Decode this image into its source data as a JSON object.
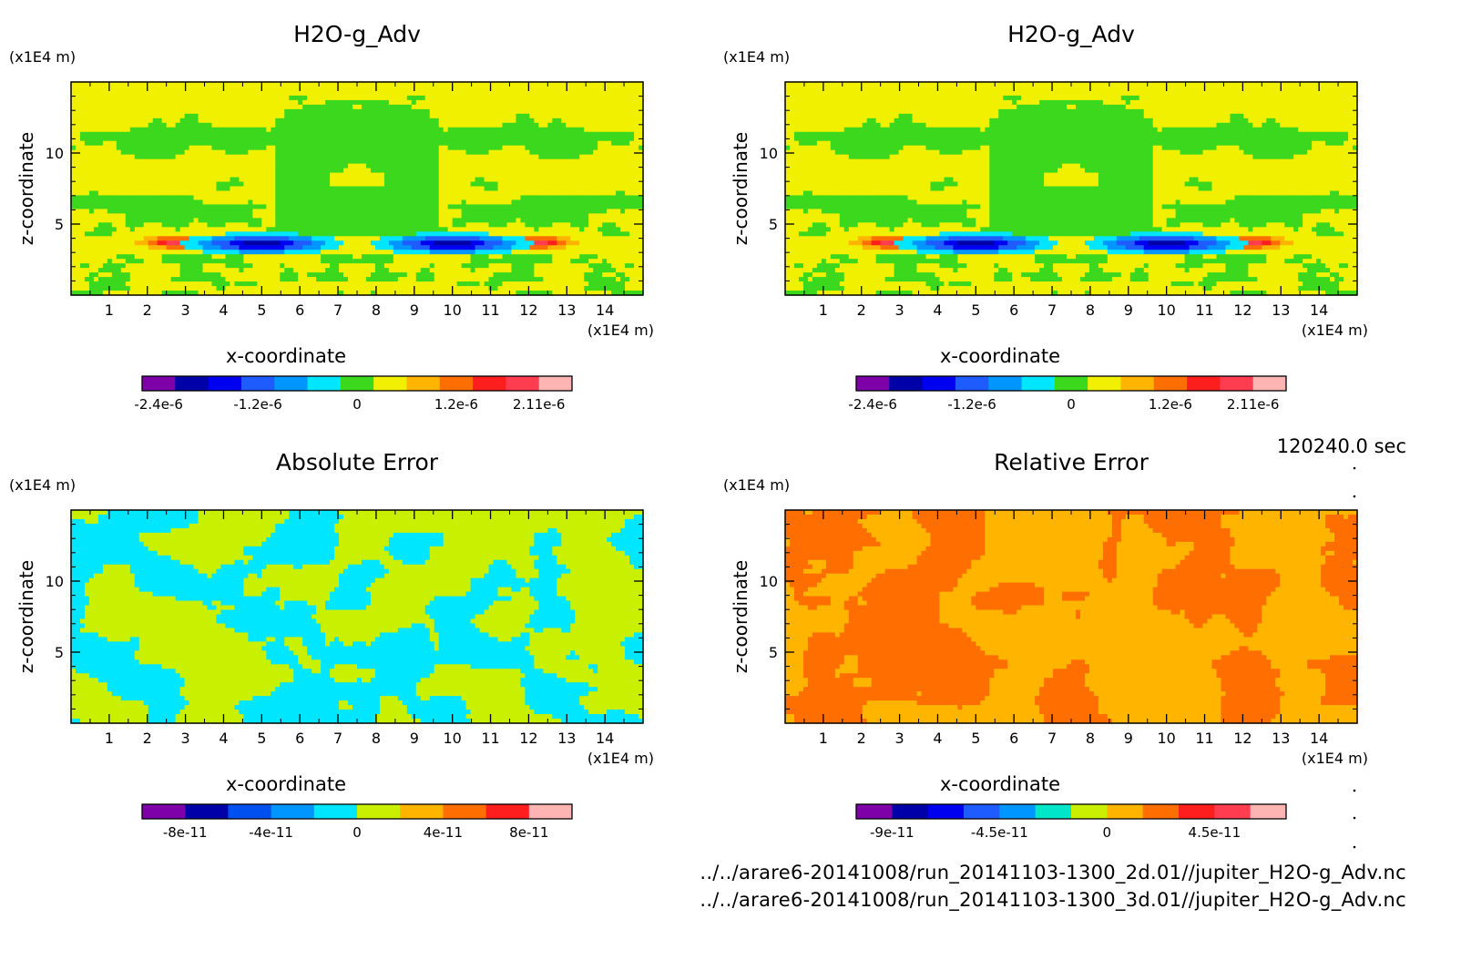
{
  "time_label": "120240.0 sec",
  "footer_lines": [
    "../../arare6-20141008/run_20141103-1300_2d.01//jupiter_H2O-g_Adv.nc",
    "../../arare6-20141008/run_20141103-1300_3d.01//jupiter_H2O-g_Adv.nc"
  ],
  "chart_data": [
    {
      "type": "heatmap",
      "title": "H2O-g_Adv",
      "xlabel": "x-coordinate",
      "ylabel": "z-coordinate",
      "x_unit": "(x1E4 m)",
      "y_unit": "(x1E4 m)",
      "xlim": [
        0,
        15
      ],
      "ylim": [
        0,
        15
      ],
      "x_ticks": [
        "1",
        "2",
        "3",
        "4",
        "5",
        "6",
        "7",
        "8",
        "9",
        "10",
        "11",
        "12",
        "13",
        "14"
      ],
      "y_ticks": [
        "5",
        "10"
      ],
      "field": "h2o",
      "colorbar": {
        "colors": [
          "#7d00a8",
          "#0000a8",
          "#0000f0",
          "#1e5cff",
          "#0096ff",
          "#00e6ff",
          "#3cd81e",
          "#f0f000",
          "#ffb400",
          "#ff6e00",
          "#ff1e1e",
          "#ff3c50",
          "#ffb4b4"
        ],
        "tick_labels": [
          "-2.4e-6",
          "-1.2e-6",
          "0",
          "1.2e-6",
          "2.11e-6"
        ],
        "tick_positions": [
          0.5,
          3.5,
          6.5,
          9.5,
          12
        ]
      }
    },
    {
      "type": "heatmap",
      "title": "H2O-g_Adv",
      "xlabel": "x-coordinate",
      "ylabel": "z-coordinate",
      "x_unit": "(x1E4 m)",
      "y_unit": "(x1E4 m)",
      "xlim": [
        0,
        15
      ],
      "ylim": [
        0,
        15
      ],
      "x_ticks": [
        "1",
        "2",
        "3",
        "4",
        "5",
        "6",
        "7",
        "8",
        "9",
        "10",
        "11",
        "12",
        "13",
        "14"
      ],
      "y_ticks": [
        "5",
        "10"
      ],
      "field": "h2o",
      "colorbar": {
        "colors": [
          "#7d00a8",
          "#0000a8",
          "#0000f0",
          "#1e5cff",
          "#0096ff",
          "#00e6ff",
          "#3cd81e",
          "#f0f000",
          "#ffb400",
          "#ff6e00",
          "#ff1e1e",
          "#ff3c50",
          "#ffb4b4"
        ],
        "tick_labels": [
          "-2.4e-6",
          "-1.2e-6",
          "0",
          "1.2e-6",
          "2.11e-6"
        ],
        "tick_positions": [
          0.5,
          3.5,
          6.5,
          9.5,
          12
        ]
      }
    },
    {
      "type": "heatmap",
      "title": "Absolute Error",
      "xlabel": "x-coordinate",
      "ylabel": "z-coordinate",
      "x_unit": "(x1E4 m)",
      "y_unit": "(x1E4 m)",
      "xlim": [
        0,
        15
      ],
      "ylim": [
        0,
        15
      ],
      "x_ticks": [
        "1",
        "2",
        "3",
        "4",
        "5",
        "6",
        "7",
        "8",
        "9",
        "10",
        "11",
        "12",
        "13",
        "14"
      ],
      "y_ticks": [
        "5",
        "10"
      ],
      "field": "abs",
      "colorbar": {
        "colors": [
          "#7d00a8",
          "#0000a8",
          "#0050f0",
          "#0096ff",
          "#00e6ff",
          "#c8f000",
          "#ffb400",
          "#ff6e00",
          "#ff1e1e",
          "#ffb4b4"
        ],
        "tick_labels": [
          "-8e-11",
          "-4e-11",
          "0",
          "4e-11",
          "8e-11"
        ],
        "tick_positions": [
          1,
          3,
          5,
          7,
          9
        ]
      }
    },
    {
      "type": "heatmap",
      "title": "Relative Error",
      "xlabel": "x-coordinate",
      "ylabel": "z-coordinate",
      "x_unit": "(x1E4 m)",
      "y_unit": "(x1E4 m)",
      "xlim": [
        0,
        15
      ],
      "ylim": [
        0,
        15
      ],
      "x_ticks": [
        "1",
        "2",
        "3",
        "4",
        "5",
        "6",
        "7",
        "8",
        "9",
        "10",
        "11",
        "12",
        "13",
        "14"
      ],
      "y_ticks": [
        "5",
        "10"
      ],
      "field": "rel",
      "colorbar": {
        "colors": [
          "#7d00a8",
          "#0000a8",
          "#0000f0",
          "#1e5cff",
          "#0096ff",
          "#00e6c8",
          "#c8f000",
          "#ffb400",
          "#ff6e00",
          "#ff1e1e",
          "#ff3c50",
          "#ffb4b4"
        ],
        "tick_labels": [
          "-9e-11",
          "-4.5e-11",
          "0",
          "4.5e-11"
        ],
        "tick_positions": [
          1,
          4,
          7,
          10
        ]
      }
    }
  ]
}
